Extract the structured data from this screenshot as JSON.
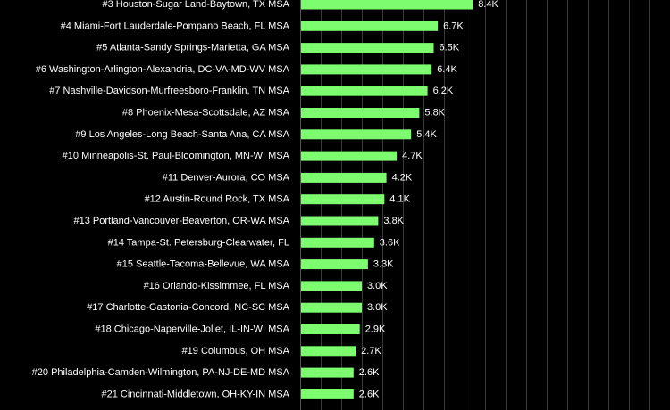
{
  "chart_data": {
    "type": "bar",
    "orientation": "horizontal",
    "categories": [
      "#3 Houston-Sugar Land-Baytown, TX MSA",
      "#4 Miami-Fort Lauderdale-Pompano Beach, FL MSA",
      "#5 Atlanta-Sandy Springs-Marietta, GA MSA",
      "#6 Washington-Arlington-Alexandria, DC-VA-MD-WV MSA",
      "#7 Nashville-Davidson-Murfreesboro-Franklin, TN MSA",
      "#8 Phoenix-Mesa-Scottsdale, AZ MSA",
      "#9 Los Angeles-Long Beach-Santa Ana, CA MSA",
      "#10 Minneapolis-St. Paul-Bloomington, MN-WI MSA",
      "#11 Denver-Aurora, CO MSA",
      "#12 Austin-Round Rock, TX MSA",
      "#13 Portland-Vancouver-Beaverton, OR-WA MSA",
      "#14 Tampa-St. Petersburg-Clearwater, FL",
      "#15 Seattle-Tacoma-Bellevue, WA MSA",
      "#16 Orlando-Kissimmee, FL MSA",
      "#17 Charlotte-Gastonia-Concord, NC-SC MSA",
      "#18 Chicago-Naperville-Joliet, IL-IN-WI MSA",
      "#19 Columbus, OH MSA",
      "#20 Philadelphia-Camden-Wilmington, PA-NJ-DE-MD MSA",
      "#21 Cincinnati-Middletown, OH-KY-IN MSA"
    ],
    "values": [
      8400,
      6700,
      6500,
      6400,
      6200,
      5800,
      5400,
      4700,
      4200,
      4100,
      3800,
      3600,
      3300,
      3000,
      3000,
      2900,
      2700,
      2600,
      2600
    ],
    "data_labels": [
      "8.4K",
      "6.7K",
      "6.5K",
      "6.4K",
      "6.2K",
      "5.8K",
      "5.4K",
      "4.7K",
      "4.2K",
      "4.1K",
      "3.8K",
      "3.6K",
      "3.3K",
      "3.0K",
      "3.0K",
      "2.9K",
      "2.7K",
      "2.6K",
      "2.6K"
    ],
    "xlim": [
      0,
      18000
    ],
    "grid": true,
    "colors": {
      "bar": "#7CFC6E",
      "background": "#000000",
      "grid": "#3a3a3a",
      "text": "#ffffff"
    }
  }
}
